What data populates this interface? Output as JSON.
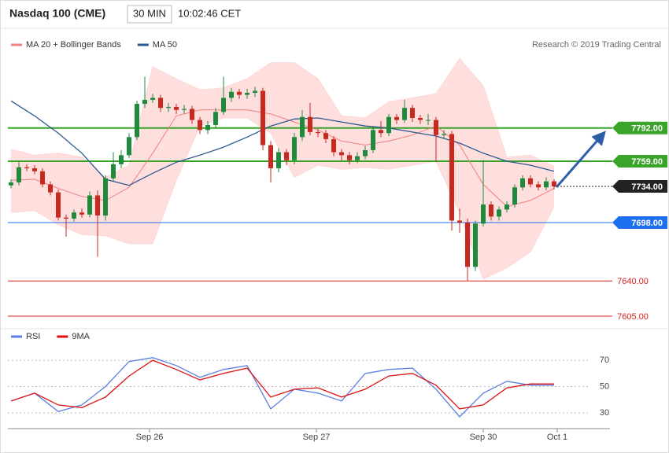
{
  "header": {
    "title": "Nasdaq 100 (CME)",
    "interval": "30 MIN",
    "time": "10:02:46 CET"
  },
  "credit": "Research © 2019 Trading Central",
  "chart_data": [
    {
      "type": "candlestick",
      "ylim": [
        7587,
        7888
      ],
      "xlim": [
        -0.4,
        76.1
      ],
      "up_color": "#1e8a3c",
      "down_color": "#c8281e",
      "candles": {
        "open": [
          7735,
          7738,
          7753,
          7752,
          7749,
          7736,
          7728,
          7703,
          7702,
          7708,
          7706,
          7725,
          7705,
          7742,
          7756,
          7765,
          7783,
          7816,
          7820,
          7822,
          7812,
          7813,
          7810,
          7811,
          7800,
          7790,
          7795,
          7808,
          7822,
          7828,
          7825,
          7827,
          7829,
          7775,
          7752,
          7768,
          7760,
          7783,
          7803,
          7788,
          7787,
          7781,
          7768,
          7765,
          7760,
          7764,
          7770,
          7790,
          7787,
          7803,
          7800,
          7812,
          7802,
          7800,
          7800,
          7785,
          7786,
          7700,
          7698,
          7654,
          7697,
          7716,
          7704,
          7711,
          7716,
          7733,
          7742,
          7736,
          7733,
          7739
        ],
        "high": [
          7741,
          7758,
          7756,
          7755,
          7752,
          7739,
          7731,
          7706,
          7711,
          7712,
          7729,
          7730,
          7745,
          7768,
          7770,
          7787,
          7819,
          7843,
          7826,
          7825,
          7817,
          7816,
          7815,
          7814,
          7803,
          7799,
          7812,
          7843,
          7832,
          7831,
          7831,
          7833,
          7832,
          7779,
          7772,
          7771,
          7787,
          7810,
          7817,
          7791,
          7790,
          7784,
          7771,
          7768,
          7768,
          7774,
          7794,
          7799,
          7806,
          7806,
          7820,
          7815,
          7805,
          7806,
          7803,
          7790,
          7789,
          7712,
          7702,
          7700,
          7760,
          7719,
          7714,
          7719,
          7736,
          7745,
          7745,
          7739,
          7743,
          7741
        ],
        "low": [
          7732,
          7735,
          7749,
          7746,
          7733,
          7725,
          7700,
          7684,
          7699,
          7703,
          7703,
          7664,
          7700,
          7739,
          7752,
          7762,
          7780,
          7812,
          7817,
          7808,
          7808,
          7806,
          7806,
          7796,
          7786,
          7786,
          7792,
          7805,
          7818,
          7821,
          7821,
          7823,
          7770,
          7738,
          7748,
          7755,
          7756,
          7779,
          7785,
          7783,
          7777,
          7764,
          7760,
          7756,
          7757,
          7761,
          7767,
          7783,
          7784,
          7796,
          7797,
          7798,
          7796,
          7795,
          7758,
          7781,
          7690,
          7688,
          7640,
          7650,
          7694,
          7700,
          7700,
          7708,
          7713,
          7730,
          7733,
          7730,
          7730,
          7731
        ],
        "close": [
          7738,
          7753,
          7752,
          7749,
          7736,
          7728,
          7703,
          7702,
          7708,
          7706,
          7725,
          7705,
          7742,
          7756,
          7765,
          7783,
          7816,
          7820,
          7822,
          7812,
          7813,
          7810,
          7811,
          7800,
          7790,
          7795,
          7808,
          7822,
          7828,
          7825,
          7827,
          7829,
          7775,
          7752,
          7768,
          7760,
          7783,
          7803,
          7788,
          7787,
          7781,
          7768,
          7765,
          7760,
          7764,
          7770,
          7790,
          7787,
          7803,
          7800,
          7812,
          7802,
          7800,
          7800,
          7785,
          7786,
          7700,
          7698,
          7654,
          7697,
          7716,
          7704,
          7711,
          7716,
          7733,
          7742,
          7736,
          7733,
          7739,
          7734
        ]
      },
      "series": [
        {
          "name": "MA 20 + Bollinger Bands",
          "color": "#f08080",
          "band_color": "#ffd6d6",
          "x": [
            0,
            3,
            6,
            9,
            12,
            15,
            18,
            21,
            24,
            27,
            30,
            33,
            36,
            39,
            42,
            45,
            48,
            51,
            54,
            57,
            60,
            63,
            66,
            69
          ],
          "values": [
            7740,
            7741,
            7732,
            7724,
            7720,
            7733,
            7767,
            7804,
            7810,
            7810,
            7810,
            7806,
            7798,
            7790,
            7779,
            7775,
            7779,
            7785,
            7794,
            7775,
            7736,
            7714,
            7720,
            7732
          ],
          "upper": [
            7771,
            7765,
            7767,
            7763,
            7743,
            7755,
            7853,
            7841,
            7830,
            7832,
            7841,
            7857,
            7857,
            7841,
            7804,
            7802,
            7818,
            7822,
            7826,
            7861,
            7834,
            7763,
            7765,
            7754
          ],
          "lower": [
            7708,
            7710,
            7696,
            7686,
            7685,
            7677,
            7677,
            7740,
            7794,
            7802,
            7802,
            7787,
            7743,
            7755,
            7751,
            7753,
            7751,
            7755,
            7759,
            7708,
            7642,
            7653,
            7669,
            7714
          ]
        },
        {
          "name": "MA 50",
          "color": "#2b5a8f",
          "x": [
            0,
            3,
            6,
            9,
            12,
            15,
            18,
            21,
            24,
            27,
            30,
            33,
            36,
            39,
            42,
            45,
            48,
            51,
            54,
            57,
            60,
            63,
            66,
            69
          ],
          "values": [
            7819,
            7804,
            7787,
            7767,
            7741,
            7735,
            7747,
            7758,
            7765,
            7773,
            7783,
            7794,
            7801,
            7802,
            7798,
            7794,
            7792,
            7788,
            7784,
            7777,
            7767,
            7759,
            7755,
            7749
          ]
        }
      ],
      "levels": [
        {
          "value": 7792,
          "label": "7792.00",
          "color": "#3aa32a",
          "style": "box",
          "line": "thick"
        },
        {
          "value": 7759,
          "label": "7759.00",
          "color": "#3aa32a",
          "style": "box",
          "line": "thick"
        },
        {
          "value": 7734,
          "label": "7734.00",
          "color": "#222222",
          "style": "box",
          "line": "dotted"
        },
        {
          "value": 7698,
          "label": "7698.00",
          "color": "#1e6ff0",
          "style": "box",
          "line": "thin"
        },
        {
          "value": 7640,
          "label": "7640.00",
          "color": "#d62020",
          "style": "text",
          "line": "thin"
        },
        {
          "value": 7605,
          "label": "7605.00",
          "color": "#d62020",
          "style": "text",
          "line": "thin"
        }
      ]
    },
    {
      "type": "line",
      "ylim": [
        18,
        85
      ],
      "xlim": [
        -0.4,
        76.1
      ],
      "yticks": [
        30,
        50,
        70
      ],
      "grid": true,
      "xticks": [
        {
          "value": 17.6,
          "label": "Sep 26"
        },
        {
          "value": 38.8,
          "label": "Sep 27"
        },
        {
          "value": 60,
          "label": "Sep 30"
        },
        {
          "value": 69.4,
          "label": "Oct 1"
        }
      ],
      "series": [
        {
          "name": "RSI",
          "color": "#5b7fe0",
          "x": [
            0,
            3,
            6,
            9,
            12,
            15,
            18,
            21,
            24,
            27,
            30,
            33,
            36,
            39,
            42,
            45,
            48,
            51,
            54,
            57,
            60,
            63,
            66,
            69
          ],
          "values": [
            39,
            45,
            31,
            36,
            50,
            69,
            72,
            66,
            57,
            63,
            66,
            33,
            48,
            45,
            39,
            60,
            63,
            64,
            48,
            27,
            45,
            54,
            51,
            51
          ]
        },
        {
          "name": "9MA",
          "color": "#e01010",
          "x": [
            0,
            3,
            6,
            9,
            12,
            15,
            18,
            21,
            24,
            27,
            30,
            33,
            36,
            39,
            42,
            45,
            48,
            51,
            54,
            57,
            60,
            63,
            66,
            69
          ],
          "values": [
            39,
            45,
            36,
            34,
            42,
            58,
            70,
            63,
            55,
            60,
            64,
            42,
            48,
            49,
            42,
            48,
            58,
            60,
            51,
            33,
            36,
            49,
            52,
            52
          ]
        }
      ]
    }
  ]
}
